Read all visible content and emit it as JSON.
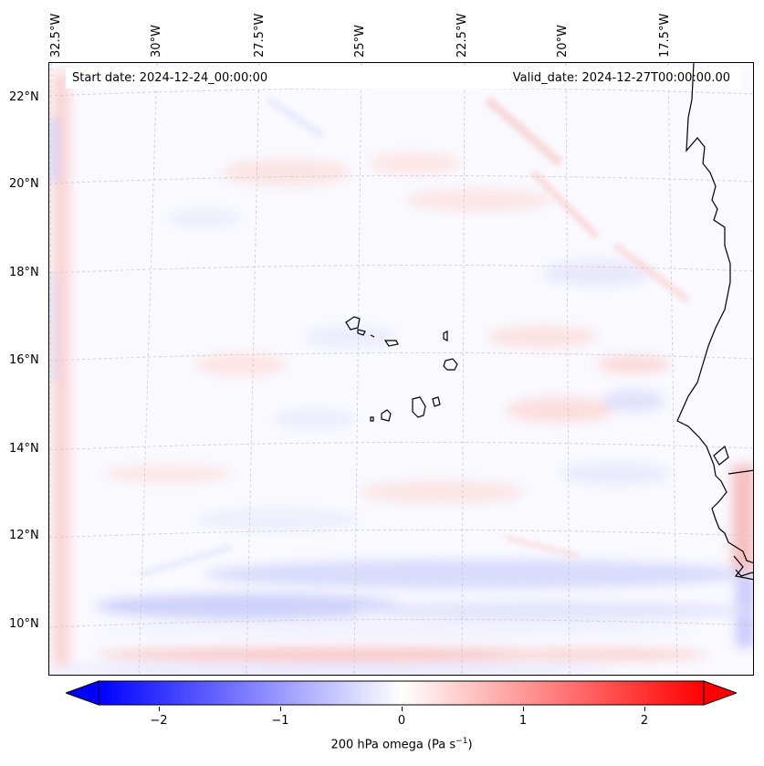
{
  "header": {
    "start_date": "Start date: 2024-12-24_00:00:00",
    "valid_date": "Valid_date: 2024-12-27T00:00:00.00"
  },
  "lon_labels": [
    "32.5°W",
    "30°W",
    "27.5°W",
    "25°W",
    "22.5°W",
    "20°W",
    "17.5°W"
  ],
  "lat_labels": [
    "22°N",
    "20°N",
    "18°N",
    "16°N",
    "14°N",
    "12°N",
    "10°N"
  ],
  "colorbar": {
    "title_prefix": "200 hPa omega (Pa s",
    "title_exp": "−1",
    "title_suffix": ")",
    "ticks": [
      "−2",
      "−1",
      "0",
      "1",
      "2"
    ],
    "tick_values": [
      -2,
      -1,
      0,
      1,
      2
    ],
    "range": [
      -2.5,
      2.5
    ],
    "colormap": "bwr",
    "neg_color": "#0000ff",
    "zero_color": "#ffffff",
    "pos_color": "#ff0000"
  },
  "colors": {
    "coast": "#000000",
    "grid": "#cccccc",
    "field_bg": "#f8f8ff"
  }
}
